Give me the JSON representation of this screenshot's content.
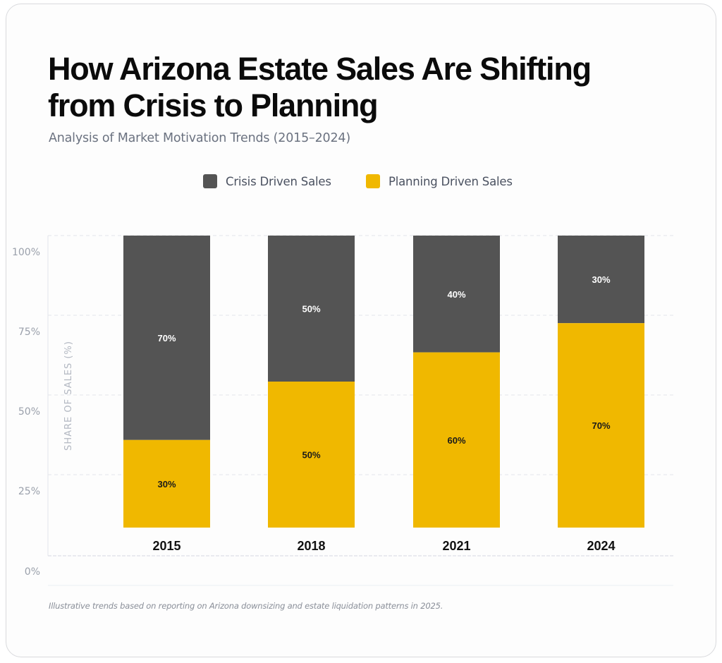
{
  "card": {
    "title_line1": "How Arizona Estate Sales Are Shifting",
    "title_line2": "from Crisis to Planning",
    "subtitle": "Analysis of Market Motivation Trends (2015–2024)",
    "footnote": "Illustrative trends based on reporting on Arizona downsizing and estate liquidation patterns in 2025."
  },
  "colors": {
    "crisis": "#545454",
    "planning": "#f0b800",
    "grid": "#e3e5ea",
    "tick_text": "#9aa0ab",
    "axis_label_text": "#b3b8c2",
    "category_text": "#111111"
  },
  "chart_data": {
    "type": "bar",
    "stacked": true,
    "title": "How Arizona Estate Sales Are Shifting from Crisis to Planning",
    "subtitle": "Analysis of Market Motivation Trends (2015–2024)",
    "xlabel": "",
    "ylabel": "SHARE OF SALES (%)",
    "categories": [
      "2015",
      "2018",
      "2021",
      "2024"
    ],
    "series": [
      {
        "name": "Planning Driven Sales",
        "color": "#f0b800",
        "values": [
          30,
          50,
          60,
          70
        ],
        "labels": [
          "30%",
          "50%",
          "60%",
          "70%"
        ]
      },
      {
        "name": "Crisis Driven Sales",
        "color": "#545454",
        "values": [
          70,
          50,
          40,
          30
        ],
        "labels": [
          "70%",
          "50%",
          "40%",
          "30%"
        ]
      }
    ],
    "legend": {
      "position": "top-center",
      "entries": [
        "Crisis Driven Sales",
        "Planning Driven Sales"
      ]
    },
    "yticks": [
      "0%",
      "25%",
      "50%",
      "75%",
      "100%"
    ],
    "ylim": [
      0,
      100
    ],
    "grid": true
  }
}
